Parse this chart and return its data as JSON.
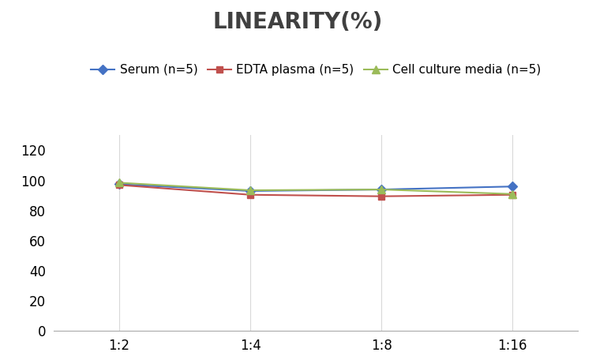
{
  "title": "LINEARITY(%)",
  "title_fontsize": 20,
  "title_fontweight": "bold",
  "x_labels": [
    "1:2",
    "1:4",
    "1:8",
    "1:16"
  ],
  "x_values": [
    1,
    2,
    3,
    4
  ],
  "series": [
    {
      "label": "Serum (n=5)",
      "values": [
        97.5,
        93.0,
        94.0,
        96.0
      ],
      "color": "#4472C4",
      "marker": "D",
      "markersize": 6
    },
    {
      "label": "EDTA plasma (n=5)",
      "values": [
        97.0,
        90.5,
        89.5,
        90.5
      ],
      "color": "#C0504D",
      "marker": "s",
      "markersize": 6
    },
    {
      "label": "Cell culture media (n=5)",
      "values": [
        98.5,
        93.5,
        94.0,
        91.0
      ],
      "color": "#9BBB59",
      "marker": "^",
      "markersize": 7
    }
  ],
  "ylim": [
    0,
    130
  ],
  "yticks": [
    0,
    20,
    40,
    60,
    80,
    100,
    120
  ],
  "grid_color": "#D9D9D9",
  "background_color": "#FFFFFF",
  "legend_fontsize": 11,
  "axis_fontsize": 12,
  "title_color": "#404040"
}
